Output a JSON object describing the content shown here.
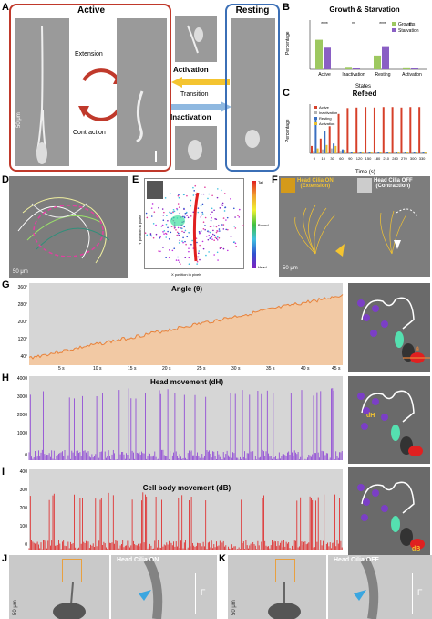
{
  "panels": {
    "a": "A",
    "b": "B",
    "c": "C",
    "d": "D",
    "e": "E",
    "f": "F",
    "g": "G",
    "h": "H",
    "i": "I",
    "j": "J",
    "k": "K"
  },
  "panel_a": {
    "active_title": "Active",
    "resting_title": "Resting",
    "extension": "Extension",
    "contraction": "Contraction",
    "activation": "Activation",
    "transition": "Transition",
    "inactivation": "Inactivation",
    "scale": "50 μm",
    "colors": {
      "active_box": "#c0392b",
      "resting_box": "#3b6fb6",
      "activation_arrow": "#f4c430",
      "inactivation_arrow": "#8fb8e0"
    }
  },
  "panel_b": {
    "title": "Growth & Starvation",
    "ylabel": "Percentage",
    "xlabel": "States",
    "legend": [
      "Growth",
      "Starvation"
    ],
    "sig": [
      "****",
      "**",
      "****",
      "n.s"
    ]
  },
  "panel_c": {
    "title": "Refeed",
    "ylabel": "Percentage",
    "xlabel": "Time (s)",
    "legend": [
      "Active",
      "Inactivation",
      "Resting",
      "Activation"
    ]
  },
  "panel_e": {
    "ylabel": "Y position in pixels",
    "xlabel": "X position in pixels",
    "cbar_top": "Tail",
    "cbar_mid": "Bound",
    "cbar_bot": "Head"
  },
  "panel_f": {
    "on_label": "Head Cilia ON\n(Extension)",
    "off_label": "Head Cilia OFF\n(Contraction)",
    "scale": "50 μm"
  },
  "panel_g": {
    "title": "Angle (θ)",
    "yticks": [
      "360°",
      "280°",
      "200°",
      "120°",
      "40°"
    ],
    "xticks": [
      "5 s",
      "10 s",
      "15 s",
      "20 s",
      "25 s",
      "30 s",
      "35 s",
      "40 s",
      "45 s"
    ],
    "theta": "θ",
    "color": "#e8823a"
  },
  "panel_h": {
    "title": "Head movement (dH)",
    "yticks": [
      "4000",
      "3000",
      "2000",
      "1000",
      "0"
    ],
    "dh_label": "dH",
    "color": "#8b3fd6"
  },
  "panel_i": {
    "title": "Cell body movement (dB)",
    "yticks": [
      "400",
      "300",
      "200",
      "100",
      "0"
    ],
    "db_label": "dB",
    "color": "#e02020"
  },
  "panel_j": {
    "label": "Head Cilia ON",
    "force": "F",
    "scale": "50 μm"
  },
  "panel_k": {
    "label": "Head Cilia OFF",
    "force": "F",
    "scale": "50 μm"
  },
  "chart_data": [
    {
      "type": "bar",
      "title": "Growth & Starvation",
      "categories": [
        "Active",
        "Inactivation",
        "Resting",
        "Activation"
      ],
      "series": [
        {
          "name": "Growth",
          "values": [
            60,
            5,
            28,
            4
          ]
        },
        {
          "name": "Starvation",
          "values": [
            44,
            3,
            47,
            3
          ]
        }
      ],
      "ylabel": "Percentage",
      "xlabel": "States",
      "ylim": [
        0,
        100
      ]
    },
    {
      "type": "bar",
      "title": "Refeed",
      "categories": [
        "0",
        "10",
        "30",
        "60",
        "90",
        "120",
        "150",
        "180",
        "210",
        "240",
        "270",
        "300",
        "330"
      ],
      "series": [
        {
          "name": "Active",
          "values": [
            15,
            30,
            55,
            80,
            92,
            93,
            94,
            93,
            94,
            94,
            93,
            94,
            94
          ]
        },
        {
          "name": "Inactivation",
          "values": [
            5,
            8,
            10,
            5,
            3,
            2,
            2,
            2,
            2,
            2,
            2,
            2,
            2
          ]
        },
        {
          "name": "Resting",
          "values": [
            70,
            45,
            20,
            8,
            3,
            2,
            2,
            2,
            2,
            2,
            2,
            2,
            2
          ]
        },
        {
          "name": "Activation",
          "values": [
            10,
            17,
            15,
            7,
            2,
            3,
            2,
            3,
            2,
            2,
            3,
            2,
            2
          ]
        }
      ],
      "ylabel": "Percentage",
      "xlabel": "Time (s)",
      "ylim": [
        0,
        100
      ]
    }
  ]
}
